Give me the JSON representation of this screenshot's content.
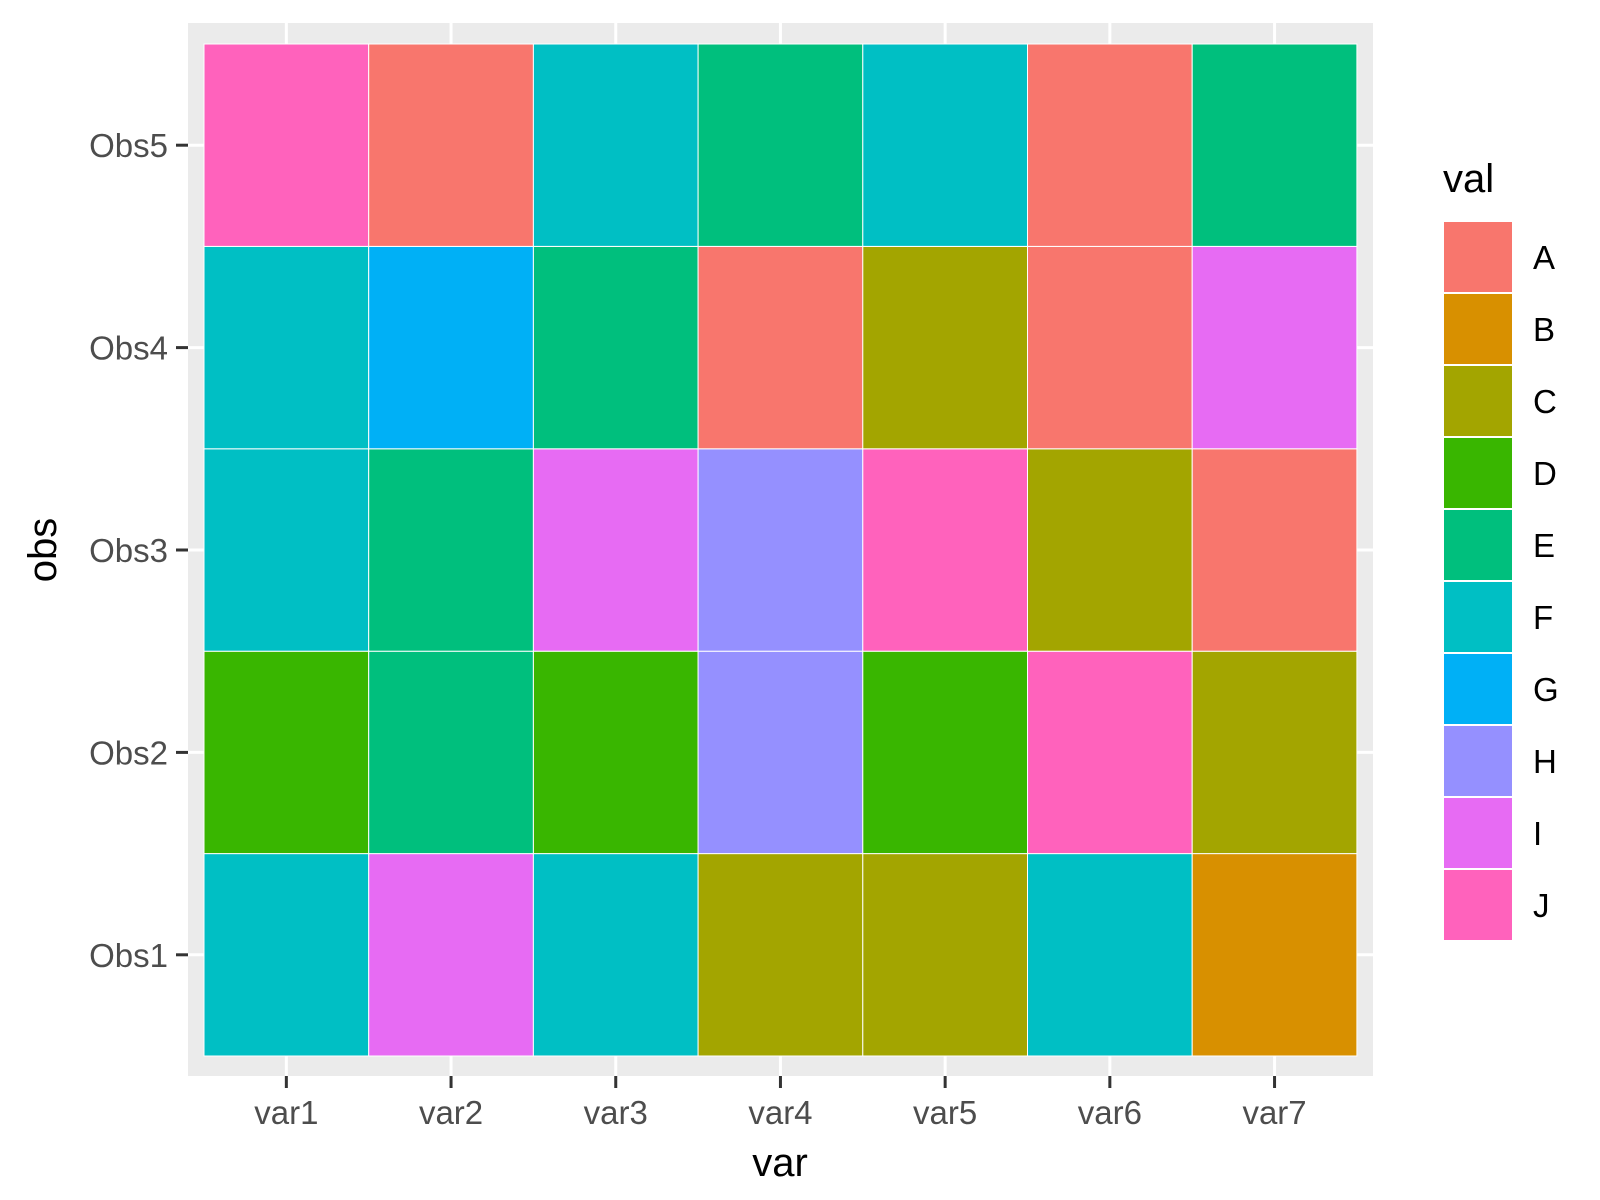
{
  "chart_data": {
    "type": "heatmap",
    "xlabel": "var",
    "ylabel": "obs",
    "x_categories": [
      "var1",
      "var2",
      "var3",
      "var4",
      "var5",
      "var6",
      "var7"
    ],
    "y_categories": [
      "Obs1",
      "Obs2",
      "Obs3",
      "Obs4",
      "Obs5"
    ],
    "values": [
      [
        "F",
        "I",
        "F",
        "C",
        "C",
        "F",
        "B"
      ],
      [
        "D",
        "E",
        "D",
        "H",
        "D",
        "J",
        "C"
      ],
      [
        "F",
        "E",
        "I",
        "H",
        "J",
        "C",
        "A"
      ],
      [
        "F",
        "G",
        "E",
        "A",
        "C",
        "A",
        "I"
      ],
      [
        "J",
        "A",
        "F",
        "E",
        "F",
        "A",
        "E"
      ]
    ],
    "legend": {
      "title": "val",
      "position": "right",
      "entries": [
        "A",
        "B",
        "C",
        "D",
        "E",
        "F",
        "G",
        "H",
        "I",
        "J"
      ]
    },
    "colors": {
      "A": "#F8766D",
      "B": "#D89000",
      "C": "#A3A500",
      "D": "#39B600",
      "E": "#00BF7D",
      "F": "#00BFC4",
      "G": "#00B0F6",
      "H": "#9590FF",
      "I": "#E76BF3",
      "J": "#FF62BC"
    },
    "panel_background": "#EBEBEB",
    "grid": true
  }
}
